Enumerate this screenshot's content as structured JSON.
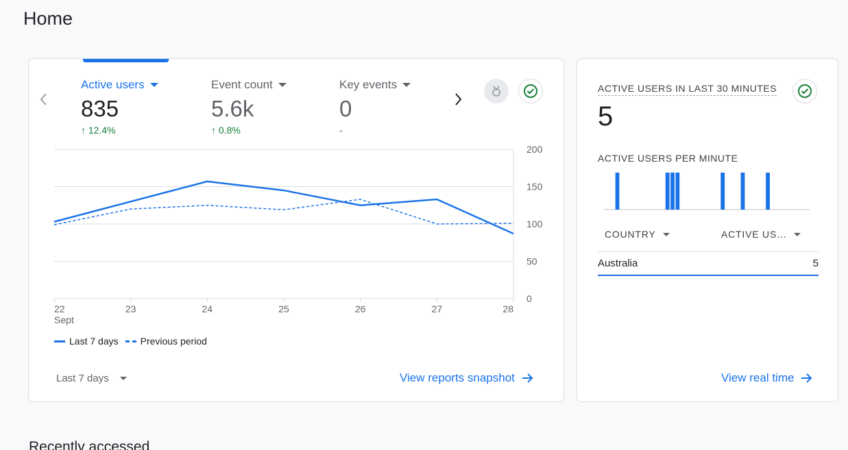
{
  "page": {
    "title": "Home"
  },
  "summary": {
    "metrics": [
      {
        "label": "Active users",
        "value": "835",
        "change": "12.4%",
        "active": true
      },
      {
        "label": "Event count",
        "value": "5.6k",
        "change": "0.8%",
        "active": false
      },
      {
        "label": "Key events",
        "value": "0",
        "change": "-",
        "active": false
      }
    ],
    "date_range": "Last 7 days",
    "view_link": "View reports snapshot",
    "legend": {
      "current": "Last 7 days",
      "previous": "Previous period"
    }
  },
  "chart_data": {
    "type": "line",
    "x": [
      "22",
      "23",
      "24",
      "25",
      "26",
      "27",
      "28"
    ],
    "x_sub": "Sept",
    "y_ticks": [
      "200",
      "150",
      "100",
      "50",
      "0"
    ],
    "ylim": [
      0,
      200
    ],
    "series": [
      {
        "name": "Last 7 days",
        "values": [
          103,
          130,
          157,
          145,
          125,
          133,
          87
        ],
        "style": "solid"
      },
      {
        "name": "Previous period",
        "values": [
          99,
          120,
          125,
          119,
          133,
          100,
          101
        ],
        "style": "dashed"
      }
    ],
    "color": "#1a73e8",
    "grid": true
  },
  "realtime": {
    "title": "ACTIVE USERS IN LAST 30 MINUTES",
    "value": "5",
    "subtitle": "ACTIVE USERS PER MINUTE",
    "minute_bars": [
      0,
      0,
      1,
      0,
      0,
      0,
      0,
      0,
      0,
      0,
      0,
      0,
      1,
      1,
      1,
      0,
      0,
      0,
      0,
      0,
      0,
      0,
      0,
      1,
      0,
      0,
      0,
      1,
      0,
      0,
      0,
      0,
      1,
      0,
      0,
      0,
      0,
      0,
      0,
      0,
      0
    ],
    "table": {
      "columns": [
        "COUNTRY",
        "ACTIVE US…"
      ],
      "rows": [
        {
          "country": "Australia",
          "users": "5"
        }
      ]
    },
    "view_link": "View real time"
  },
  "footer": {
    "section_title": "Recently accessed"
  },
  "colors": {
    "accent": "#1a73e8",
    "positive": "#188038"
  }
}
